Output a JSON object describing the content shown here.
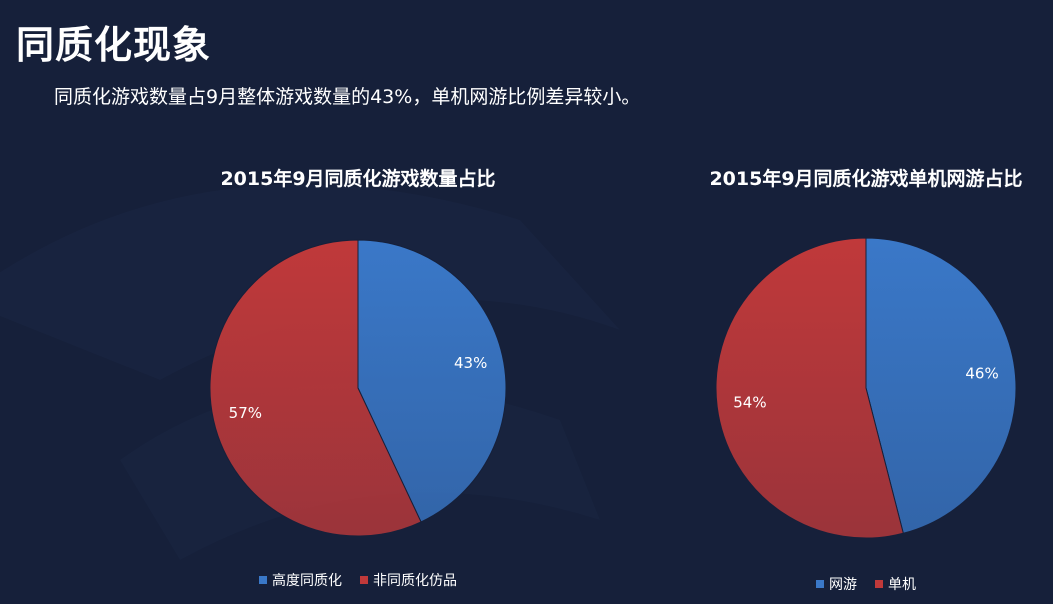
{
  "page": {
    "title": "同质化现象",
    "subtitle": "同质化游戏数量占9月整体游戏数量的43%，单机网游比例差异较小。"
  },
  "colors": {
    "background": "#16203a",
    "blue": "#3a78c8",
    "red": "#c0393a"
  },
  "chart_data": [
    {
      "type": "pie",
      "title": "2015年9月同质化游戏数量占比",
      "series": [
        {
          "name": "高度同质化",
          "value": 43,
          "label": "43%",
          "color": "#3a78c8"
        },
        {
          "name": "非同质化仿品",
          "value": 57,
          "label": "57%",
          "color": "#c0393a"
        }
      ],
      "legend_position": "bottom"
    },
    {
      "type": "pie",
      "title": "2015年9月同质化游戏单机网游占比",
      "series": [
        {
          "name": "网游",
          "value": 46,
          "label": "46%",
          "color": "#3a78c8"
        },
        {
          "name": "单机",
          "value": 54,
          "label": "54%",
          "color": "#c0393a"
        }
      ],
      "legend_position": "bottom"
    }
  ]
}
